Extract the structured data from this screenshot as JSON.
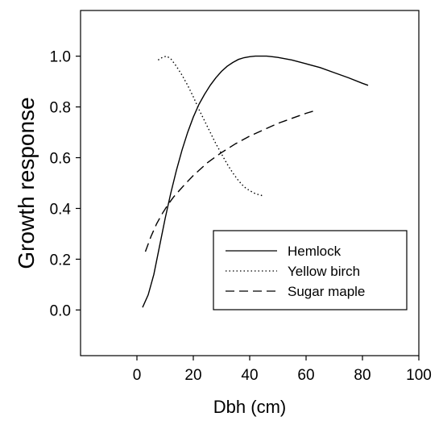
{
  "chart_data": {
    "type": "line",
    "xlabel": "Dbh (cm)",
    "ylabel": "Growth response",
    "xlim": [
      -20,
      100
    ],
    "ylim": [
      -0.18,
      1.18
    ],
    "xticks": [
      0,
      20,
      40,
      60,
      80,
      100
    ],
    "xtick_labels": [
      "0",
      "20",
      "40",
      "60",
      "80",
      "100"
    ],
    "yticks": [
      0.0,
      0.2,
      0.4,
      0.6,
      0.8,
      1.0
    ],
    "ytick_labels": [
      "0.0",
      "0.2",
      "0.4",
      "0.6",
      "0.8",
      "1.0"
    ],
    "grid": false,
    "legend_position": "bottom-right",
    "series": [
      {
        "name": "Hemlock",
        "dash": "solid",
        "x": [
          2,
          4,
          6,
          8,
          10,
          12,
          14,
          16,
          18,
          20,
          22,
          24,
          26,
          28,
          30,
          32,
          34,
          36,
          38,
          40,
          42,
          44,
          46,
          48,
          50,
          55,
          60,
          65,
          70,
          75,
          80,
          82
        ],
        "y": [
          0.01,
          0.06,
          0.14,
          0.25,
          0.36,
          0.46,
          0.55,
          0.63,
          0.7,
          0.76,
          0.81,
          0.85,
          0.885,
          0.915,
          0.94,
          0.96,
          0.975,
          0.987,
          0.994,
          0.998,
          1.0,
          1.0,
          1.0,
          0.998,
          0.995,
          0.985,
          0.97,
          0.955,
          0.935,
          0.915,
          0.893,
          0.885
        ]
      },
      {
        "name": "Yellow birch",
        "dash": "dotted",
        "x": [
          7.5,
          9,
          10.5,
          12,
          14,
          16,
          18,
          20,
          22,
          24,
          26,
          28,
          30,
          32,
          34,
          36,
          38,
          40,
          42,
          44,
          44.5
        ],
        "y": [
          0.985,
          0.995,
          1.0,
          0.99,
          0.96,
          0.925,
          0.885,
          0.84,
          0.79,
          0.745,
          0.7,
          0.655,
          0.615,
          0.575,
          0.54,
          0.51,
          0.485,
          0.47,
          0.458,
          0.452,
          0.45
        ]
      },
      {
        "name": "Sugar maple",
        "dash": "dashed",
        "x": [
          3,
          5,
          7,
          9,
          11,
          13,
          15,
          17,
          20,
          25,
          30,
          35,
          40,
          45,
          50,
          55,
          60,
          63
        ],
        "y": [
          0.23,
          0.29,
          0.34,
          0.38,
          0.415,
          0.445,
          0.47,
          0.495,
          0.53,
          0.58,
          0.62,
          0.655,
          0.685,
          0.71,
          0.735,
          0.755,
          0.775,
          0.785
        ]
      }
    ]
  }
}
